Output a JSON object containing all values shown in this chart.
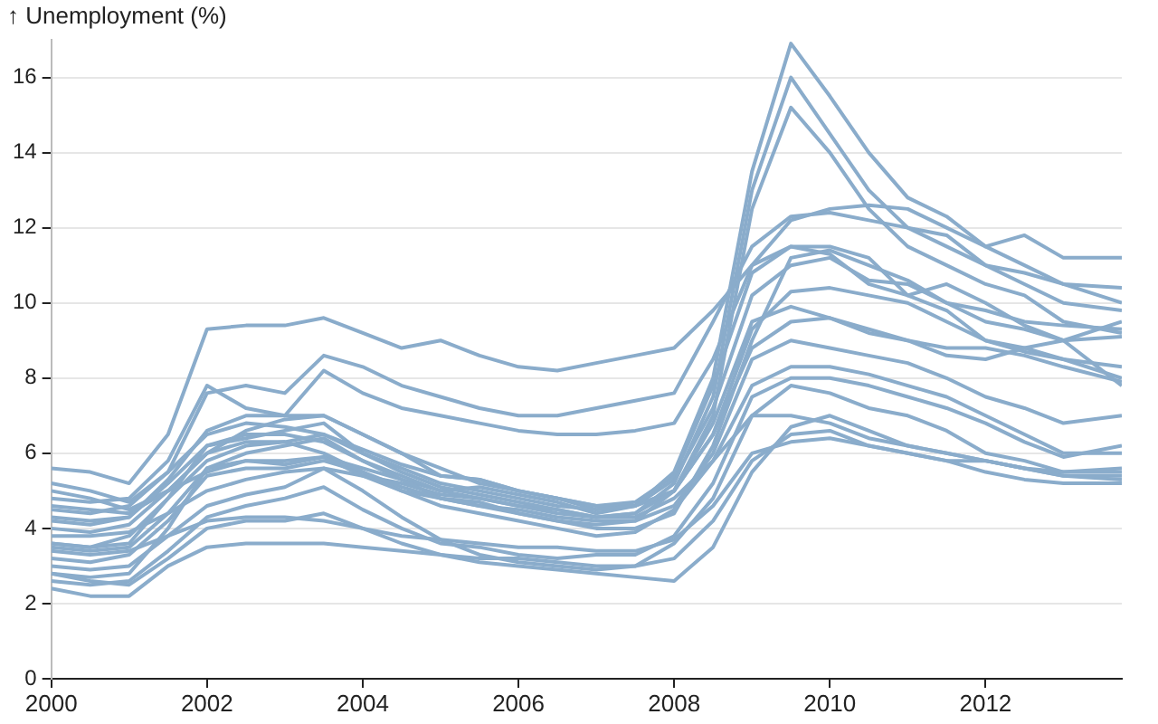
{
  "chart_data": {
    "type": "line",
    "ylabel": "↑ Unemployment (%)",
    "x": [
      2000,
      2000.5,
      2001,
      2001.5,
      2002,
      2002.5,
      2003,
      2003.5,
      2004,
      2004.5,
      2005,
      2005.5,
      2006,
      2006.5,
      2007,
      2007.5,
      2008,
      2008.5,
      2009,
      2009.5,
      2010,
      2010.5,
      2011,
      2011.5,
      2012,
      2012.5,
      2013,
      2013.75
    ],
    "xlim": [
      2000,
      2013.75
    ],
    "xticks": [
      2000,
      2002,
      2004,
      2006,
      2008,
      2010,
      2012
    ],
    "ylim": [
      0,
      17
    ],
    "yticks": [
      0,
      2,
      4,
      6,
      8,
      10,
      12,
      14,
      16
    ],
    "grid": "y",
    "legend": false,
    "marker": "none",
    "line_style": "solid",
    "series": [
      {
        "color": "#8aaccb",
        "values": [
          4.5,
          4.4,
          4.6,
          5.5,
          6.5,
          6.8,
          6.7,
          6.5,
          6.0,
          5.6,
          5.2,
          5.0,
          4.8,
          4.6,
          4.5,
          4.6,
          5.5,
          8.0,
          13.5,
          16.9,
          15.5,
          14.0,
          12.8,
          12.3,
          11.5,
          11.0,
          10.5,
          10.4
        ]
      },
      {
        "color": "#8aaccb",
        "values": [
          4.2,
          4.1,
          4.3,
          5.2,
          6.2,
          6.5,
          6.5,
          6.3,
          5.8,
          5.4,
          5.0,
          4.8,
          4.6,
          4.4,
          4.3,
          4.4,
          5.2,
          7.5,
          13.0,
          16.0,
          14.5,
          13.0,
          12.0,
          11.8,
          11.0,
          10.5,
          10.0,
          9.8
        ]
      },
      {
        "color": "#8aaccb",
        "values": [
          3.6,
          3.5,
          3.8,
          4.8,
          5.8,
          6.2,
          6.3,
          6.0,
          5.5,
          5.1,
          4.8,
          4.6,
          4.4,
          4.2,
          4.1,
          4.2,
          5.0,
          7.0,
          12.5,
          15.2,
          14.0,
          12.5,
          11.5,
          11.0,
          10.5,
          10.2,
          9.5,
          9.2
        ]
      },
      {
        "color": "#8aaccb",
        "values": [
          5.6,
          5.5,
          5.2,
          6.5,
          9.3,
          9.4,
          9.4,
          9.6,
          9.2,
          8.8,
          9.0,
          8.6,
          8.3,
          8.2,
          8.4,
          8.6,
          8.8,
          9.8,
          11.0,
          12.2,
          12.5,
          12.6,
          12.5,
          12.0,
          11.5,
          11.8,
          11.2,
          11.2
        ]
      },
      {
        "color": "#8aaccb",
        "values": [
          5.2,
          5.0,
          4.7,
          5.5,
          7.6,
          7.8,
          7.6,
          8.6,
          8.3,
          7.8,
          7.5,
          7.2,
          7.0,
          7.0,
          7.2,
          7.4,
          7.6,
          9.5,
          11.5,
          12.3,
          12.4,
          12.2,
          12.0,
          11.5,
          11.0,
          10.8,
          10.5,
          10.0
        ]
      },
      {
        "color": "#8aaccb",
        "values": [
          4.8,
          4.7,
          4.8,
          5.8,
          7.8,
          7.2,
          7.0,
          8.2,
          7.6,
          7.2,
          7.0,
          6.8,
          6.6,
          6.5,
          6.5,
          6.6,
          6.8,
          8.5,
          11.0,
          11.5,
          11.3,
          10.5,
          10.2,
          9.8,
          9.0,
          8.7,
          8.5,
          8.0
        ]
      },
      {
        "color": "#8aaccb",
        "values": [
          3.6,
          3.5,
          3.6,
          4.8,
          6.2,
          6.4,
          6.6,
          6.8,
          6.0,
          5.5,
          5.1,
          4.9,
          4.7,
          4.5,
          4.3,
          4.4,
          5.0,
          6.8,
          9.5,
          9.9,
          9.6,
          9.2,
          9.0,
          8.6,
          8.5,
          8.8,
          9.0,
          7.8
        ]
      },
      {
        "color": "#8aaccb",
        "values": [
          2.8,
          2.7,
          2.8,
          4.0,
          5.6,
          6.0,
          6.2,
          6.4,
          5.8,
          5.3,
          4.8,
          4.6,
          4.5,
          4.3,
          4.2,
          4.2,
          4.6,
          6.0,
          8.5,
          9.0,
          8.8,
          8.6,
          8.4,
          8.0,
          7.5,
          7.2,
          6.8,
          7.0
        ]
      },
      {
        "color": "#8aaccb",
        "values": [
          3.5,
          3.4,
          3.5,
          4.4,
          5.6,
          5.8,
          5.7,
          5.9,
          5.4,
          5.0,
          4.6,
          4.4,
          4.2,
          4.0,
          3.8,
          3.9,
          4.5,
          5.8,
          7.8,
          8.3,
          8.3,
          8.1,
          7.8,
          7.5,
          7.0,
          6.5,
          6.0,
          6.0
        ]
      },
      {
        "color": "#8aaccb",
        "values": [
          2.4,
          2.2,
          2.2,
          3.0,
          3.5,
          3.6,
          3.6,
          3.6,
          3.5,
          3.4,
          3.3,
          3.2,
          3.2,
          3.1,
          3.0,
          3.0,
          3.2,
          4.2,
          5.8,
          6.5,
          6.6,
          6.2,
          6.0,
          5.8,
          5.5,
          5.3,
          5.2,
          5.2
        ]
      },
      {
        "color": "#8aaccb",
        "values": [
          2.8,
          2.6,
          2.5,
          3.2,
          4.0,
          4.2,
          4.2,
          4.4,
          4.0,
          3.6,
          3.3,
          3.1,
          3.0,
          2.9,
          2.8,
          2.7,
          2.6,
          3.5,
          5.5,
          6.7,
          7.0,
          6.6,
          6.2,
          6.0,
          5.8,
          5.6,
          5.5,
          5.5
        ]
      },
      {
        "color": "#8aaccb",
        "values": [
          3.0,
          2.9,
          3.0,
          3.8,
          4.6,
          4.9,
          5.1,
          5.6,
          5.0,
          4.3,
          3.7,
          3.3,
          3.1,
          3.0,
          2.9,
          3.0,
          3.6,
          4.8,
          7.0,
          7.8,
          7.6,
          7.2,
          7.0,
          6.6,
          6.0,
          5.8,
          5.5,
          5.6
        ]
      },
      {
        "color": "#8aaccb",
        "values": [
          4.0,
          3.9,
          4.1,
          5.0,
          6.0,
          6.6,
          6.9,
          7.0,
          6.5,
          6.0,
          5.4,
          5.3,
          5.0,
          4.8,
          4.6,
          4.6,
          5.0,
          6.5,
          9.3,
          10.3,
          10.4,
          10.2,
          10.0,
          9.5,
          9.0,
          8.8,
          8.5,
          8.3
        ]
      },
      {
        "color": "#8aaccb",
        "values": [
          3.2,
          3.1,
          3.3,
          4.2,
          5.4,
          5.6,
          5.6,
          5.8,
          5.5,
          5.0,
          4.8,
          4.7,
          4.4,
          4.2,
          4.0,
          4.0,
          4.4,
          6.2,
          9.0,
          11.2,
          11.4,
          11.0,
          10.6,
          10.0,
          9.5,
          9.3,
          9.0,
          9.1
        ]
      },
      {
        "color": "#8aaccb",
        "values": [
          4.6,
          4.5,
          4.4,
          5.0,
          6.0,
          6.3,
          6.3,
          6.5,
          6.1,
          5.7,
          5.4,
          5.3,
          5.0,
          4.8,
          4.6,
          4.7,
          5.4,
          7.8,
          10.8,
          11.5,
          11.5,
          11.2,
          10.2,
          10.5,
          10.0,
          9.4,
          9.0,
          9.5
        ]
      },
      {
        "color": "#8aaccb",
        "values": [
          5.0,
          4.8,
          4.5,
          5.0,
          5.5,
          5.8,
          5.8,
          5.9,
          5.6,
          5.3,
          5.0,
          5.1,
          4.9,
          4.7,
          4.4,
          4.6,
          5.0,
          6.5,
          8.8,
          9.5,
          9.6,
          9.3,
          9.0,
          8.8,
          8.8,
          8.6,
          8.3,
          7.9
        ]
      },
      {
        "color": "#8aaccb",
        "values": [
          2.6,
          2.5,
          2.6,
          3.4,
          4.3,
          4.6,
          4.8,
          5.1,
          4.5,
          4.0,
          3.6,
          3.5,
          3.3,
          3.2,
          3.3,
          3.3,
          3.8,
          5.2,
          7.5,
          8.0,
          8.0,
          7.8,
          7.5,
          7.2,
          6.8,
          6.3,
          5.9,
          6.2
        ]
      },
      {
        "color": "#8aaccb",
        "values": [
          3.8,
          3.8,
          3.9,
          4.4,
          5.0,
          5.3,
          5.5,
          5.6,
          5.4,
          5.2,
          4.9,
          4.8,
          4.6,
          4.5,
          4.3,
          4.3,
          4.8,
          5.8,
          7.0,
          7.0,
          6.8,
          6.4,
          6.2,
          6.0,
          5.8,
          5.6,
          5.4,
          5.4
        ]
      },
      {
        "color": "#8aaccb",
        "values": [
          3.4,
          3.3,
          3.4,
          3.8,
          4.2,
          4.3,
          4.3,
          4.2,
          4.0,
          3.8,
          3.7,
          3.6,
          3.5,
          3.5,
          3.4,
          3.4,
          3.7,
          4.6,
          6.0,
          6.3,
          6.4,
          6.2,
          6.0,
          5.8,
          5.8,
          5.6,
          5.4,
          5.3
        ]
      },
      {
        "color": "#8aaccb",
        "values": [
          4.3,
          4.2,
          4.3,
          5.3,
          6.6,
          7.0,
          7.0,
          7.0,
          6.5,
          6.0,
          5.6,
          5.2,
          5.0,
          4.8,
          4.5,
          4.6,
          5.3,
          7.2,
          10.2,
          11.0,
          11.2,
          10.6,
          10.5,
          10.0,
          9.8,
          9.5,
          9.4,
          9.3
        ]
      }
    ]
  }
}
